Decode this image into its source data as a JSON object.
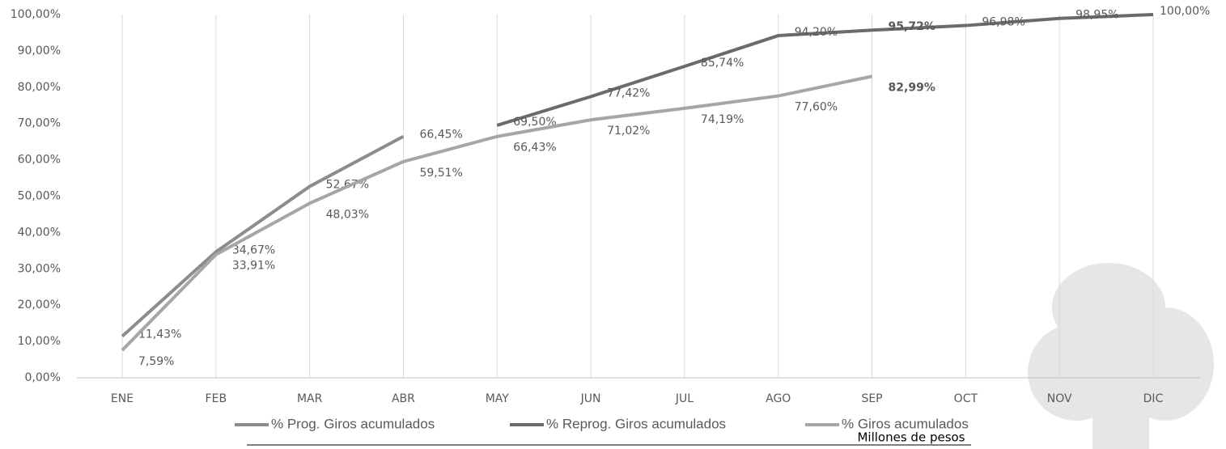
{
  "chart_data": {
    "type": "line",
    "categories": [
      "ENE",
      "FEB",
      "MAR",
      "ABR",
      "MAY",
      "JUN",
      "JUL",
      "AGO",
      "SEP",
      "OCT",
      "NOV",
      "DIC"
    ],
    "series": [
      {
        "name": "% Prog. Giros acumulados",
        "color": "#8c8c8c",
        "values": [
          11.43,
          34.67,
          52.67,
          66.45,
          null,
          null,
          null,
          null,
          null,
          null,
          null,
          null
        ],
        "value_labels": [
          "11,43%",
          "34,67%",
          "52,67%",
          "66,45%",
          null,
          null,
          null,
          null,
          null,
          null,
          null,
          null
        ]
      },
      {
        "name": "% Reprog. Giros acumulados",
        "color": "#6b6b6b",
        "values": [
          null,
          null,
          null,
          null,
          69.5,
          77.42,
          85.74,
          94.2,
          95.72,
          96.98,
          98.95,
          100.0
        ],
        "value_labels": [
          null,
          null,
          null,
          null,
          "69,50%",
          "77,42%",
          "85,74%",
          "94,20%",
          "95,72%",
          "96,98%",
          "98,95%",
          "100,00%"
        ]
      },
      {
        "name": "% Giros acumulados",
        "color": "#a6a6a6",
        "values": [
          7.59,
          33.91,
          48.03,
          59.51,
          66.43,
          71.02,
          74.19,
          77.6,
          82.99,
          null,
          null,
          null
        ],
        "value_labels": [
          "7,59%",
          "33,91%",
          "48,03%",
          "59,51%",
          "66,43%",
          "71,02%",
          "74,19%",
          "77,60%",
          "82,99%",
          null,
          null,
          null
        ]
      }
    ],
    "ylim": [
      0,
      100
    ],
    "yticks": [
      {
        "value": 0,
        "label": "0,00%"
      },
      {
        "value": 10,
        "label": "10,00%"
      },
      {
        "value": 20,
        "label": "20,00%"
      },
      {
        "value": 30,
        "label": "30,00%"
      },
      {
        "value": 40,
        "label": "40,00%"
      },
      {
        "value": 50,
        "label": "50,00%"
      },
      {
        "value": 60,
        "label": "60,00%"
      },
      {
        "value": 70,
        "label": "70,00%"
      },
      {
        "value": 80,
        "label": "80,00%"
      },
      {
        "value": 90,
        "label": "90,00%"
      },
      {
        "value": 100,
        "label": "100,00%"
      }
    ],
    "grid": "x",
    "note": "Millones de pesos"
  }
}
